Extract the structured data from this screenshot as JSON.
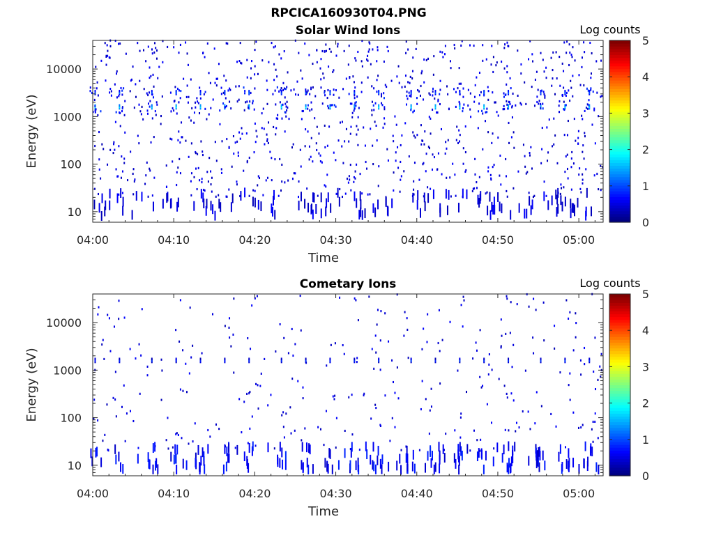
{
  "figure": {
    "title": "RPCICA160930T04.PNG"
  },
  "colorbar": {
    "label": "Log counts",
    "range": [
      0,
      5
    ],
    "ticks": [
      "0",
      "1",
      "2",
      "3",
      "4",
      "5"
    ],
    "colormap": "jet"
  },
  "colors": {
    "axis": "#262626",
    "background": "#ffffff"
  },
  "chart_data": [
    {
      "type": "heatmap",
      "title": "Solar Wind Ions",
      "xlabel": "Time",
      "ylabel": "Energy (eV)",
      "y_scale": "log",
      "ylim": [
        6,
        40000
      ],
      "xlim": [
        "04:00",
        "05:03"
      ],
      "x_ticks": [
        "04:00",
        "04:10",
        "04:20",
        "04:30",
        "04:40",
        "04:50",
        "05:00"
      ],
      "y_ticks": [
        "10",
        "100",
        "1000",
        "10000"
      ],
      "colorbar_label": "Log counts",
      "clim": [
        0,
        5
      ],
      "features": [
        {
          "description": "periodic peaks near 1600 eV",
          "energy_eV": 1600,
          "log_counts": 1.8,
          "times": [
            "04:00",
            "04:03",
            "04:07",
            "04:10",
            "04:13",
            "04:16",
            "04:19",
            "04:23",
            "04:26",
            "04:29",
            "04:32",
            "04:35",
            "04:39",
            "04:42",
            "04:45",
            "04:48",
            "04:51",
            "04:55",
            "04:58",
            "05:01"
          ]
        },
        {
          "description": "periodic peaks near 3200 eV",
          "energy_eV": 3200,
          "log_counts": 1.2,
          "times": [
            "04:00",
            "04:03",
            "04:07",
            "04:10",
            "04:13",
            "04:16",
            "04:19",
            "04:23",
            "04:26",
            "04:29",
            "04:32",
            "04:35",
            "04:39",
            "04:42",
            "04:45",
            "04:48",
            "04:51",
            "04:55",
            "04:58",
            "05:01"
          ]
        },
        {
          "description": "sparse single counts across 20 eV - 40000 eV",
          "log_counts": 0.3
        },
        {
          "description": "low-energy streaks 6 - 20 eV",
          "log_counts": 0.3
        }
      ]
    },
    {
      "type": "heatmap",
      "title": "Cometary Ions",
      "xlabel": "Time",
      "ylabel": "Energy (eV)",
      "y_scale": "log",
      "ylim": [
        6,
        40000
      ],
      "xlim": [
        "04:00",
        "05:03"
      ],
      "x_ticks": [
        "04:00",
        "04:10",
        "04:20",
        "04:30",
        "04:40",
        "04:50",
        "05:00"
      ],
      "y_ticks": [
        "10",
        "100",
        "1000",
        "10000"
      ],
      "colorbar_label": "Log counts",
      "clim": [
        0,
        5
      ],
      "features": [
        {
          "description": "periodic weak peaks near 1600 eV",
          "energy_eV": 1600,
          "log_counts": 0.9,
          "times": [
            "04:00",
            "04:03",
            "04:07",
            "04:10",
            "04:13",
            "04:16",
            "04:19",
            "04:23",
            "04:26",
            "04:29",
            "04:32",
            "04:35",
            "04:39",
            "04:42",
            "04:45",
            "04:48",
            "04:51",
            "04:55",
            "04:58",
            "05:01"
          ]
        },
        {
          "description": "low-energy bands 6 - 15 eV",
          "log_counts": 0.5,
          "times": [
            "04:00",
            "04:03",
            "04:07",
            "04:10",
            "04:13",
            "04:16",
            "04:19",
            "04:23",
            "04:26",
            "04:29",
            "04:32",
            "04:35",
            "04:39",
            "04:42",
            "04:45",
            "04:48",
            "04:51",
            "04:55",
            "04:58",
            "05:01"
          ]
        },
        {
          "description": "sparse single counts across 20 eV - 40000 eV",
          "log_counts": 0.3
        }
      ]
    }
  ]
}
